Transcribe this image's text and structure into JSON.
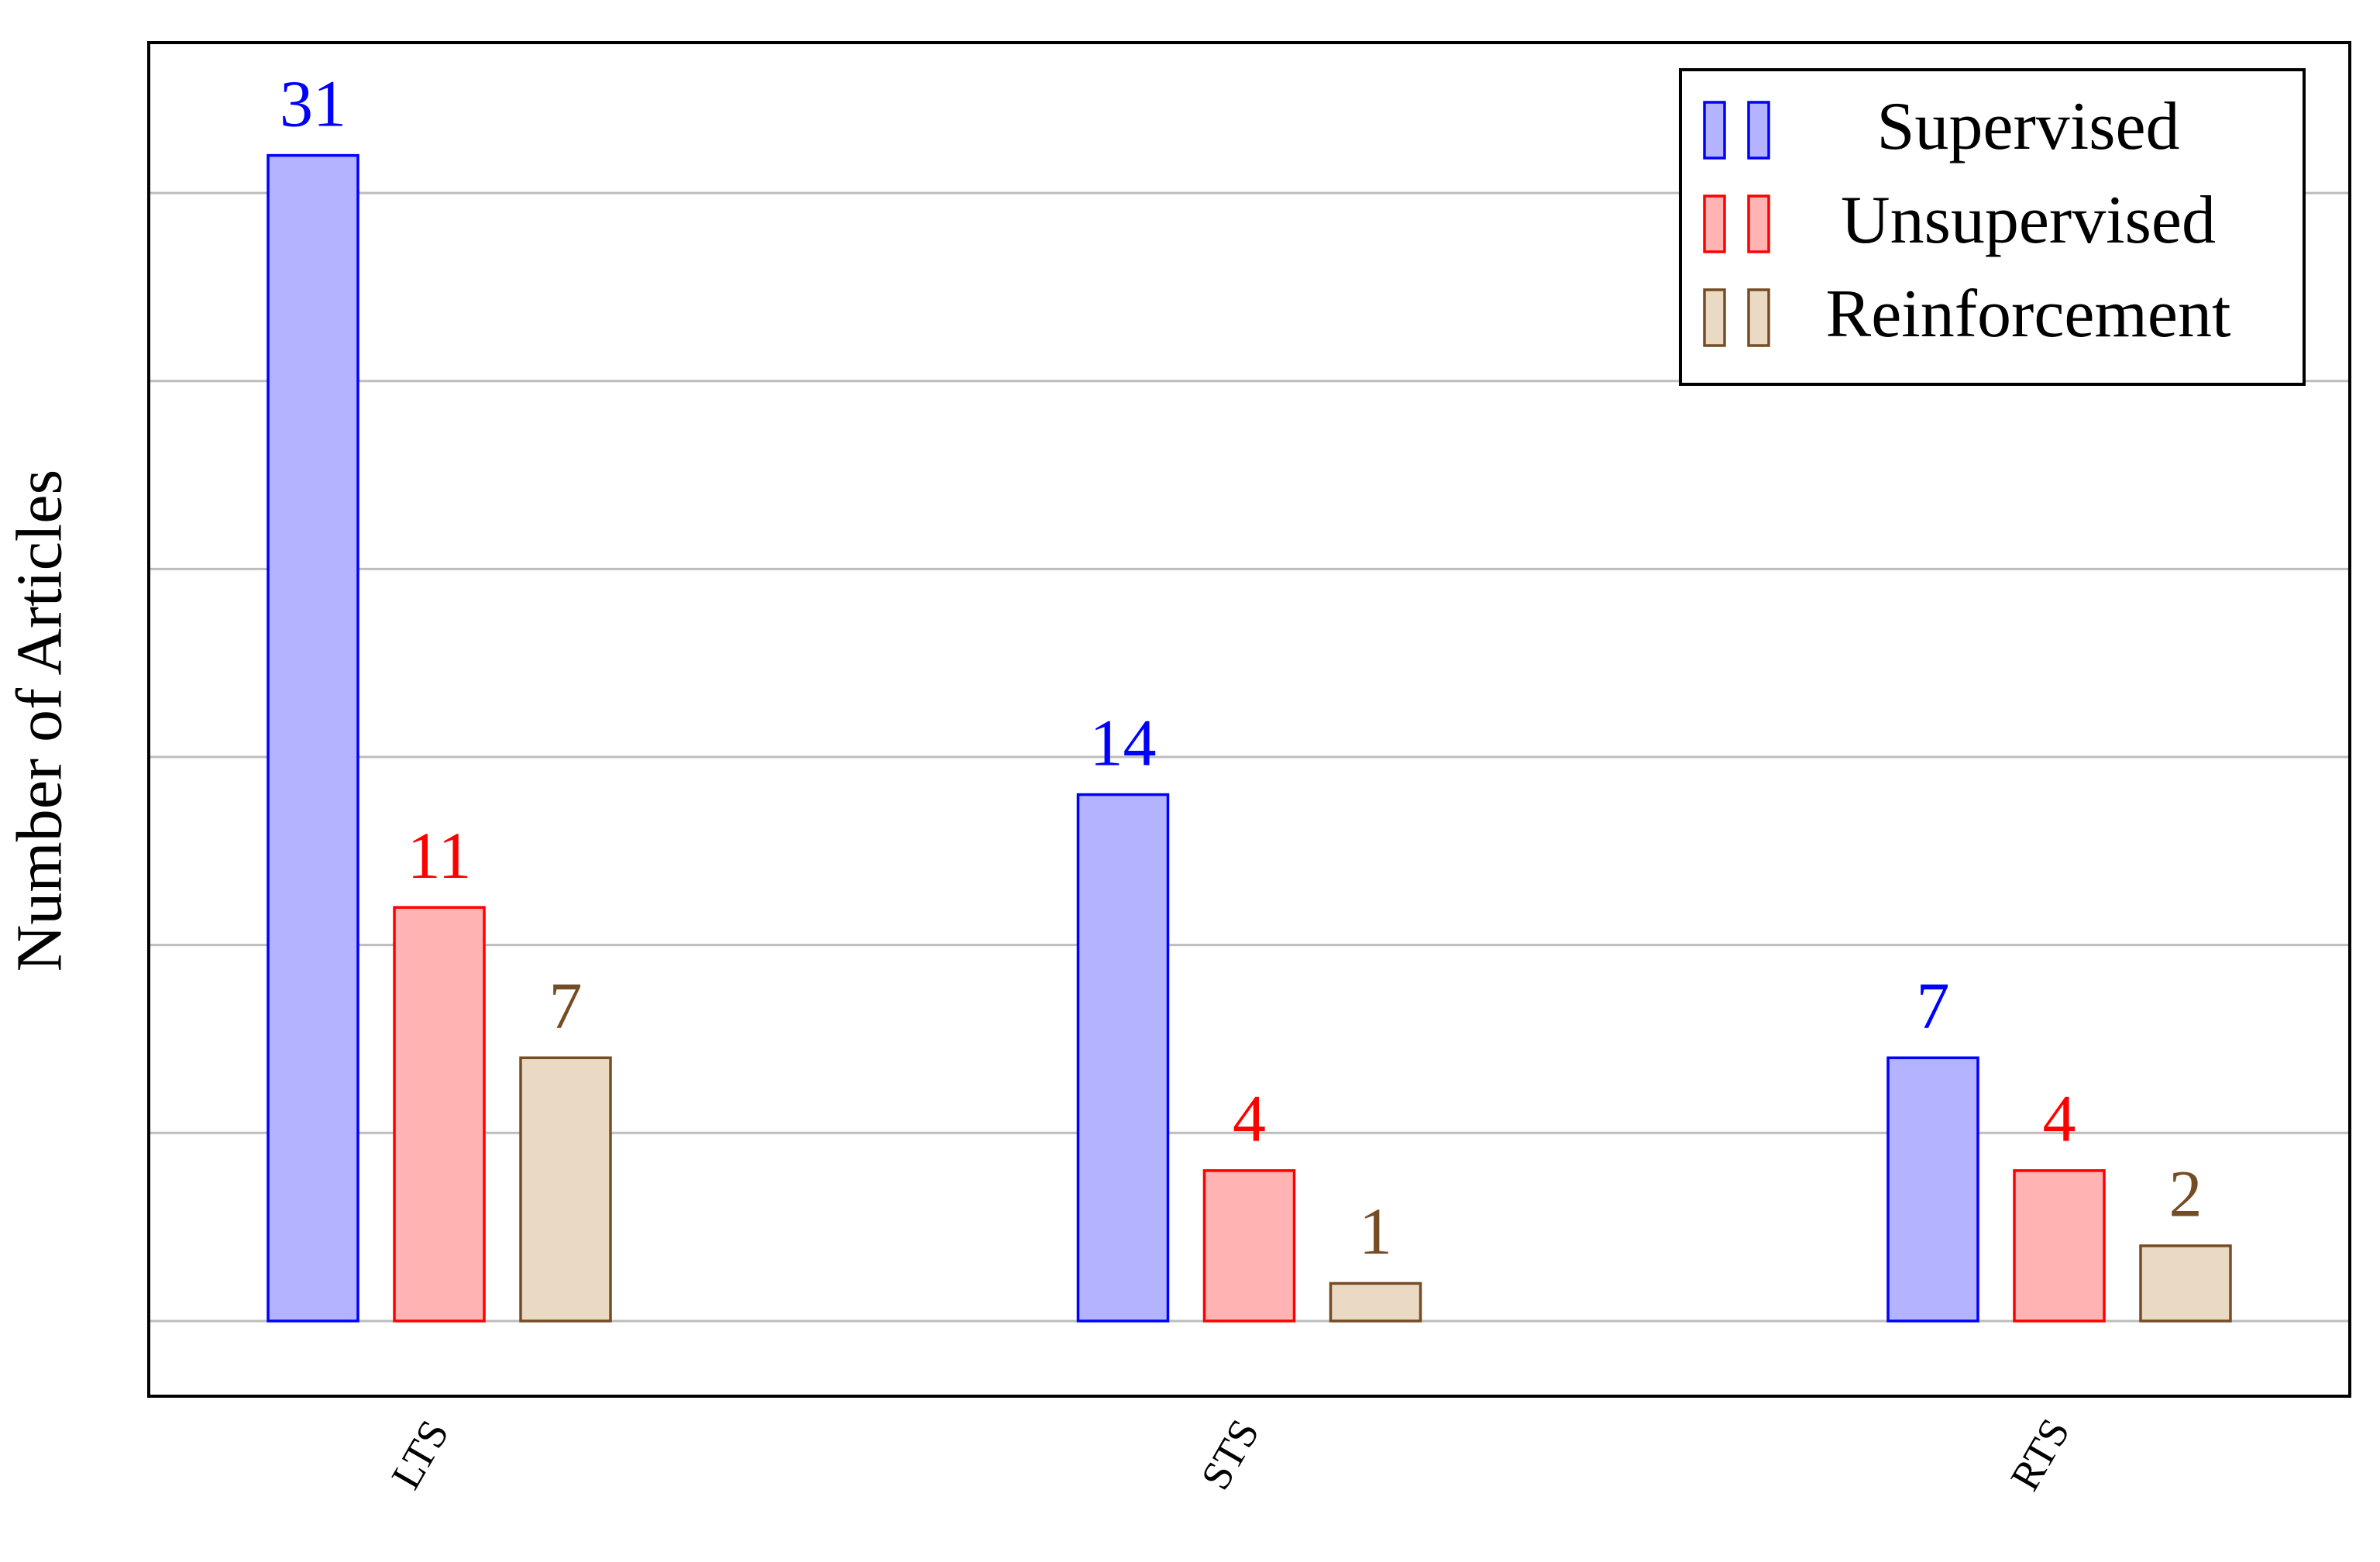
{
  "chart_data": {
    "type": "bar",
    "y_label": "Number of Articles",
    "categories": [
      "LTS",
      "STS",
      "RTS"
    ],
    "series": [
      {
        "name": "Supervised",
        "color": "#0000ff",
        "fill": "#b3b3ff",
        "values": [
          31,
          14,
          7
        ]
      },
      {
        "name": "Unsupervised",
        "color": "#ff0000",
        "fill": "#ffb3b3",
        "values": [
          11,
          4,
          4
        ]
      },
      {
        "name": "Reinforcement",
        "color": "#754c24",
        "fill": "#ead9c3",
        "values": [
          7,
          1,
          2
        ]
      }
    ],
    "ylim": [
      -2,
      34
    ],
    "yticks": [
      0,
      5,
      10,
      15,
      20,
      25,
      30
    ],
    "grid": true,
    "legend": "top-right"
  }
}
